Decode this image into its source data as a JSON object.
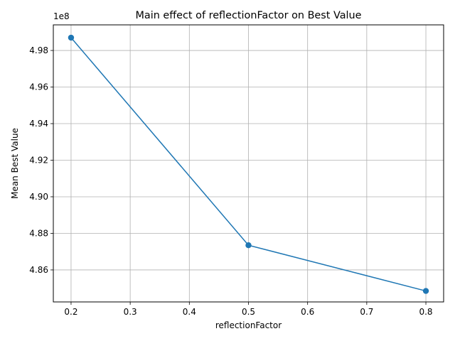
{
  "chart_data": {
    "type": "line",
    "title": "Main effect of reflectionFactor on Best Value",
    "xlabel": "reflectionFactor",
    "ylabel": "Mean Best Value",
    "y_offset_label": "1e8",
    "y_scale": 100000000,
    "x": [
      0.2,
      0.5,
      0.8
    ],
    "series": [
      {
        "values": [
          498700000,
          487350000,
          484850000
        ]
      }
    ],
    "xlim": [
      0.17,
      0.83
    ],
    "ylim": [
      484250000,
      499400000
    ],
    "xticks": [
      0.2,
      0.3,
      0.4,
      0.5,
      0.6,
      0.7,
      0.8
    ],
    "xtick_labels": [
      "0.2",
      "0.3",
      "0.4",
      "0.5",
      "0.6",
      "0.7",
      "0.8"
    ],
    "yticks": [
      486000000,
      488000000,
      490000000,
      492000000,
      494000000,
      496000000,
      498000000
    ],
    "ytick_labels": [
      "4.86",
      "4.88",
      "4.90",
      "4.92",
      "4.94",
      "4.96",
      "4.98"
    ],
    "grid": true,
    "line_color": "#1f77b4",
    "marker": "circle"
  }
}
